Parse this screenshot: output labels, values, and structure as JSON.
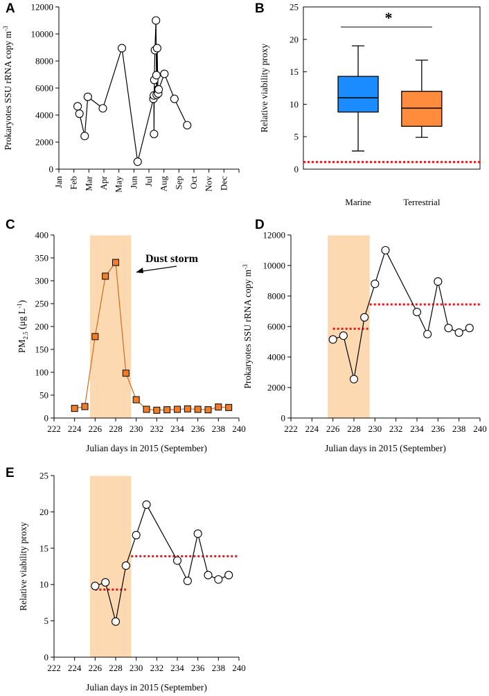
{
  "chart_data": [
    {
      "panel": "A",
      "type": "line",
      "ylabel": "Prokaryotes SSU rRNA copy m",
      "ylabel_sup": "-3",
      "ylim": [
        0,
        12000
      ],
      "yticks": [
        0,
        2000,
        4000,
        6000,
        8000,
        10000,
        12000
      ],
      "xlim": [
        0,
        12
      ],
      "month_labels": [
        "Jan",
        "Feb",
        "Mar",
        "Apr",
        "May",
        "Jun",
        "Jul",
        "Aug",
        "Sep",
        "Oct",
        "Nov",
        "Dec"
      ],
      "x": [
        1.25,
        1.37,
        1.72,
        1.93,
        2.93,
        4.2,
        5.25,
        6.3,
        6.33,
        6.34,
        6.36,
        6.4,
        6.47,
        6.5,
        6.52,
        6.55,
        6.6,
        6.62,
        6.65,
        7.03,
        7.7,
        8.55
      ],
      "values": [
        4650,
        4100,
        2450,
        5350,
        4500,
        8950,
        550,
        5200,
        5450,
        2600,
        6600,
        8800,
        11000,
        6950,
        5500,
        8950,
        5900,
        5600,
        5900,
        7050,
        5200,
        3250
      ]
    },
    {
      "panel": "B",
      "type": "box",
      "ylabel": "Relative viability proxy",
      "ylim": [
        0,
        25
      ],
      "yticks": [
        0,
        5,
        10,
        15,
        20,
        25
      ],
      "categories": [
        "Marine",
        "Terrestrial"
      ],
      "boxes": [
        {
          "name": "Marine",
          "whisker_low": 2.8,
          "q1": 8.8,
          "median": 11.0,
          "q3": 14.3,
          "whisker_high": 19.0,
          "color": "#1a8cff"
        },
        {
          "name": "Terrestrial",
          "whisker_low": 4.9,
          "q1": 6.6,
          "median": 9.4,
          "q3": 12.0,
          "whisker_high": 16.8,
          "color": "#ff8c3c"
        }
      ],
      "reference_line": 1.1,
      "significance": "*"
    },
    {
      "panel": "C",
      "type": "line",
      "ylabel": "PM",
      "ylabel_sub": "2.5",
      "ylabel_unit": " (μg L",
      "ylabel_sup": "-1",
      "ylabel_close": ")",
      "xlabel": "Julian days in 2015 (September)",
      "xlim": [
        222,
        240
      ],
      "xticks": [
        222,
        224,
        226,
        228,
        230,
        232,
        234,
        236,
        238,
        240
      ],
      "ylim": [
        0,
        400
      ],
      "yticks": [
        0,
        50,
        100,
        150,
        200,
        250,
        300,
        350,
        400
      ],
      "shade": [
        225.5,
        229.5
      ],
      "annotation": "Dust storm",
      "x": [
        224,
        225,
        226,
        227,
        228,
        229,
        230,
        231,
        232,
        233,
        234,
        235,
        236,
        237,
        238,
        239
      ],
      "values": [
        21,
        25,
        178,
        310,
        340,
        98,
        40,
        19,
        17,
        18,
        19,
        20,
        19,
        18,
        24,
        23
      ]
    },
    {
      "panel": "D",
      "type": "line",
      "ylabel": "Prokaryotes SSU rRNA copy m",
      "ylabel_sup": "-3",
      "xlabel": "Julian days in 2015 (September)",
      "xlim": [
        222,
        240
      ],
      "xticks": [
        222,
        224,
        226,
        228,
        230,
        232,
        234,
        236,
        238,
        240
      ],
      "ylim": [
        0,
        12000
      ],
      "yticks": [
        0,
        2000,
        4000,
        6000,
        8000,
        10000,
        12000
      ],
      "shade": [
        225.5,
        229.5
      ],
      "x": [
        226,
        227,
        228,
        229,
        230,
        231,
        234,
        235,
        236,
        237,
        238,
        239
      ],
      "values": [
        5150,
        5400,
        2550,
        6600,
        8800,
        11000,
        6950,
        5500,
        8950,
        5900,
        5600,
        5900
      ],
      "means": [
        {
          "x0": 226,
          "x1": 229.5,
          "y": 5850
        },
        {
          "x0": 229.5,
          "x1": 240,
          "y": 7450
        }
      ]
    },
    {
      "panel": "E",
      "type": "line",
      "ylabel": "Relative viability proxy",
      "xlabel": "Julian days in 2015 (September)",
      "xlim": [
        222,
        240
      ],
      "xticks": [
        222,
        224,
        226,
        228,
        230,
        232,
        234,
        236,
        238,
        240
      ],
      "ylim": [
        0,
        25
      ],
      "yticks": [
        0,
        5,
        10,
        15,
        20,
        25
      ],
      "shade": [
        225.5,
        229.5
      ],
      "x": [
        226,
        227,
        228,
        229,
        230,
        231,
        234,
        235,
        236,
        237,
        238,
        239
      ],
      "values": [
        9.8,
        10.3,
        4.9,
        12.6,
        16.8,
        21.0,
        13.3,
        10.5,
        17.0,
        11.3,
        10.7,
        11.3
      ],
      "means": [
        {
          "x0": 226,
          "x1": 229,
          "y": 9.3
        },
        {
          "x0": 229.5,
          "x1": 240,
          "y": 13.9
        }
      ]
    }
  ],
  "colors": {
    "shade": "#fcd9b0",
    "mean_line": "#e8141a",
    "pm_line": "#d2691e",
    "pm_marker": "#f07d28"
  }
}
